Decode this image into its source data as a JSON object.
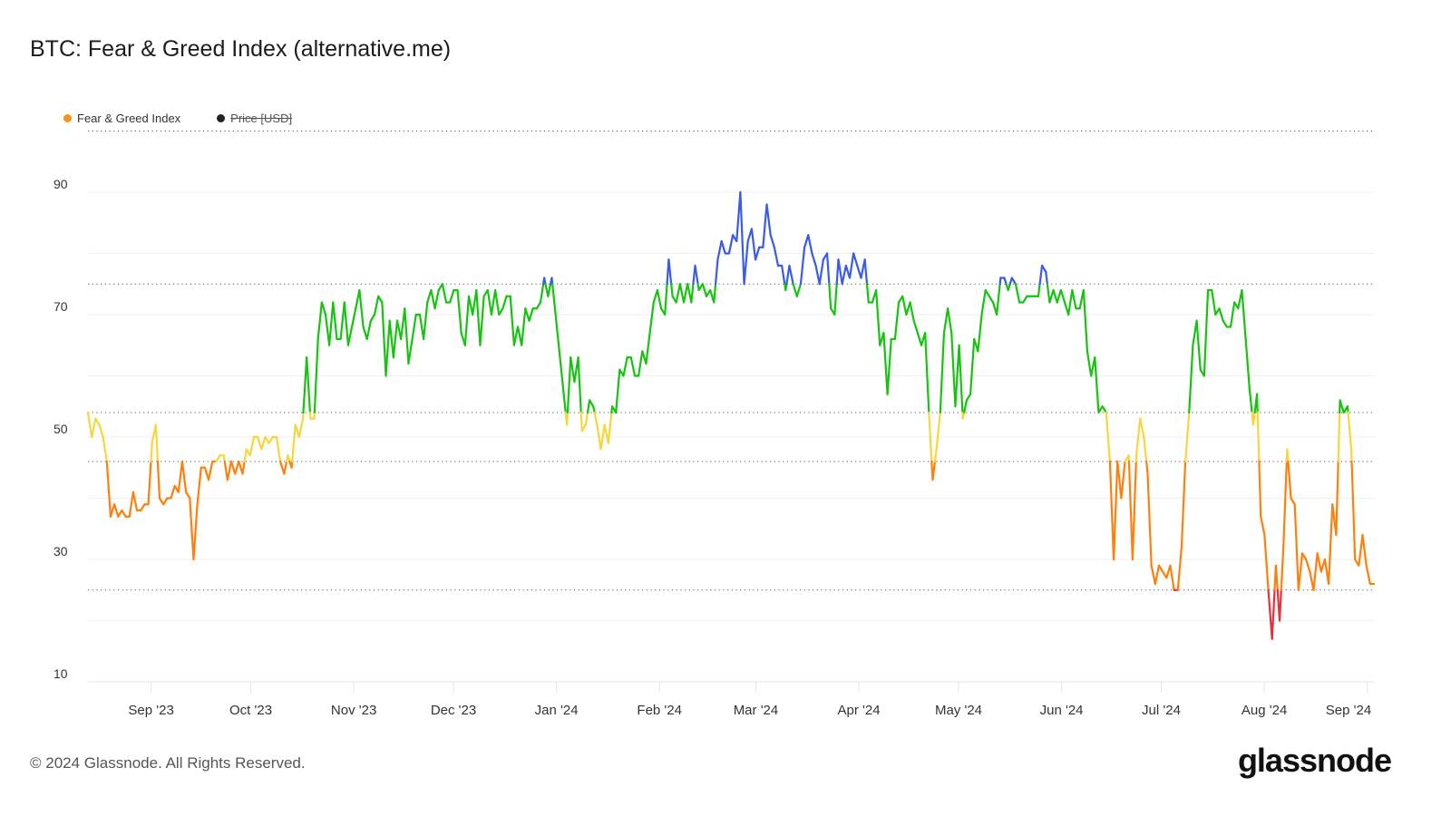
{
  "title": "BTC: Fear & Greed Index (alternative.me)",
  "legend": [
    {
      "label": "Fear & Greed Index",
      "color": "#f7931a",
      "active": true
    },
    {
      "label": "Price [USD]",
      "color": "#222222",
      "active": false
    }
  ],
  "footer": "© 2024 Glassnode. All Rights Reserved.",
  "logo": "glassnode",
  "chart_data": {
    "type": "line",
    "title": "BTC: Fear & Greed Index (alternative.me)",
    "xlabel": "",
    "ylabel": "",
    "x_range": [
      "2023-08-13",
      "2024-09-03"
    ],
    "ylim": [
      10,
      100
    ],
    "y_ticks": [
      10,
      30,
      50,
      70,
      90
    ],
    "x_ticks": [
      {
        "date": "2023-09-01",
        "label": "Sep '23"
      },
      {
        "date": "2023-10-01",
        "label": "Oct '23"
      },
      {
        "date": "2023-11-01",
        "label": "Nov '23"
      },
      {
        "date": "2023-12-01",
        "label": "Dec '23"
      },
      {
        "date": "2024-01-01",
        "label": "Jan '24"
      },
      {
        "date": "2024-02-01",
        "label": "Feb '24"
      },
      {
        "date": "2024-03-01",
        "label": "Mar '24"
      },
      {
        "date": "2024-04-01",
        "label": "Apr '24"
      },
      {
        "date": "2024-05-01",
        "label": "May '24"
      },
      {
        "date": "2024-06-01",
        "label": "Jun '24"
      },
      {
        "date": "2024-07-01",
        "label": "Jul '24"
      },
      {
        "date": "2024-08-01",
        "label": "Aug '24"
      },
      {
        "date": "2024-09-01",
        "label": "Sep '24"
      }
    ],
    "grid": true,
    "threshold_lines": [
      25,
      46,
      54,
      75,
      100
    ],
    "zones": [
      {
        "max": 25,
        "color": "#e8303a"
      },
      {
        "max": 46,
        "color": "#ff7f0a"
      },
      {
        "max": 54,
        "color": "#f6d63a"
      },
      {
        "max": 75,
        "color": "#16c410"
      },
      {
        "max": 100,
        "color": "#3a5be6"
      }
    ],
    "legend_position": "top-left",
    "series": [
      {
        "name": "Fear & Greed Index",
        "values": [
          54,
          50,
          53,
          52,
          50,
          46,
          37,
          39,
          37,
          38,
          37,
          37,
          41,
          38,
          38,
          39,
          39,
          49,
          52,
          40,
          39,
          40,
          40,
          42,
          41,
          46,
          41,
          40,
          30,
          39,
          45,
          45,
          43,
          46,
          46,
          47,
          47,
          43,
          46,
          44,
          46,
          44,
          48,
          47,
          50,
          50,
          48,
          50,
          49,
          50,
          50,
          46,
          44,
          47,
          45,
          52,
          50,
          53,
          63,
          53,
          53,
          66,
          72,
          70,
          65,
          72,
          66,
          66,
          72,
          65,
          68,
          71,
          74,
          68,
          66,
          69,
          70,
          73,
          72,
          60,
          69,
          63,
          69,
          66,
          71,
          62,
          66,
          70,
          70,
          66,
          72,
          74,
          71,
          74,
          75,
          72,
          72,
          74,
          74,
          67,
          65,
          73,
          70,
          74,
          65,
          73,
          74,
          70,
          74,
          70,
          71,
          73,
          73,
          65,
          68,
          65,
          71,
          69,
          71,
          71,
          72,
          76,
          73,
          76,
          70,
          64,
          58,
          52,
          63,
          59,
          63,
          51,
          52,
          56,
          55,
          52,
          48,
          52,
          49,
          55,
          54,
          61,
          60,
          63,
          63,
          60,
          60,
          64,
          62,
          67,
          72,
          74,
          71,
          70,
          79,
          73,
          72,
          75,
          72,
          75,
          72,
          78,
          74,
          75,
          73,
          74,
          72,
          79,
          82,
          80,
          80,
          83,
          82,
          90,
          75,
          82,
          84,
          79,
          81,
          81,
          88,
          83,
          81,
          78,
          78,
          74,
          78,
          75,
          73,
          75,
          81,
          83,
          80,
          78,
          75,
          79,
          80,
          71,
          70,
          79,
          75,
          78,
          76,
          80,
          78,
          76,
          79,
          72,
          72,
          74,
          65,
          67,
          57,
          66,
          66,
          72,
          73,
          70,
          72,
          69,
          67,
          65,
          67,
          54,
          43,
          48,
          54,
          67,
          71,
          67,
          55,
          65,
          53,
          56,
          57,
          66,
          64,
          70,
          74,
          73,
          72,
          70,
          76,
          76,
          74,
          76,
          75,
          72,
          72,
          73,
          73,
          73,
          73,
          78,
          77,
          72,
          74,
          72,
          74,
          72,
          70,
          74,
          71,
          71,
          74,
          64,
          60,
          63,
          54,
          55,
          54,
          46,
          30,
          46,
          40,
          46,
          47,
          30,
          47,
          53,
          50,
          44,
          29,
          26,
          29,
          28,
          27,
          29,
          25,
          25,
          32,
          46,
          54,
          65,
          69,
          61,
          60,
          74,
          74,
          70,
          71,
          69,
          68,
          68,
          72,
          71,
          74,
          66,
          58,
          52,
          57,
          37,
          34,
          25,
          17,
          29,
          20,
          32,
          48,
          40,
          39,
          25,
          31,
          30,
          28,
          25,
          31,
          28,
          30,
          26,
          39,
          34,
          56,
          54,
          55,
          48,
          30,
          29,
          34,
          29,
          26,
          26
        ]
      }
    ]
  }
}
